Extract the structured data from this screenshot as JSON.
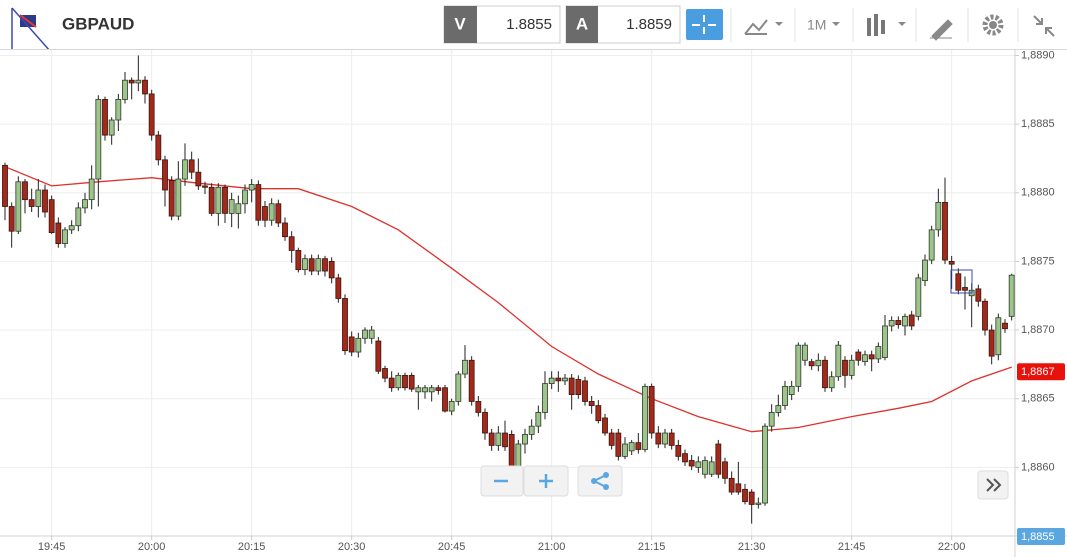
{
  "toolbar": {
    "symbol": "GBPAUD",
    "bid_label": "V",
    "bid": "1.8855",
    "ask_label": "A",
    "ask": "1.8859",
    "timeframe": "1M"
  },
  "chart_data": {
    "type": "candlestick",
    "title": "GBPAUD",
    "x": [
      1178,
      1179,
      1180,
      1181,
      1182,
      1183,
      1184,
      1185,
      1186,
      1187,
      1188,
      1189,
      1190,
      1191,
      1192,
      1193,
      1194,
      1195,
      1196,
      1197,
      1198,
      1199,
      1200,
      1201,
      1202,
      1203,
      1204,
      1205,
      1206,
      1207,
      1208,
      1209,
      1210,
      1211,
      1212,
      1213,
      1214,
      1215,
      1216,
      1217,
      1218,
      1219,
      1220,
      1221,
      1222,
      1223,
      1224,
      1225,
      1226,
      1227,
      1228,
      1229,
      1230,
      1231,
      1232,
      1233,
      1234,
      1235,
      1236,
      1237,
      1238,
      1239,
      1240,
      1241,
      1242,
      1243,
      1244,
      1245,
      1246,
      1247,
      1248,
      1249,
      1250,
      1251,
      1252,
      1253,
      1254,
      1255,
      1256,
      1257,
      1258,
      1259,
      1260,
      1261,
      1262,
      1263,
      1264,
      1265,
      1266,
      1267,
      1268,
      1269,
      1270,
      1271,
      1272,
      1273,
      1274,
      1275,
      1276,
      1277,
      1278,
      1279,
      1280,
      1281,
      1282,
      1283,
      1284,
      1285,
      1286,
      1287,
      1288,
      1289,
      1290,
      1291,
      1292,
      1293,
      1294,
      1295,
      1296,
      1297,
      1298,
      1299,
      1300,
      1301,
      1302,
      1303,
      1304,
      1305,
      1306,
      1307,
      1308,
      1309,
      1310,
      1311,
      1312,
      1313,
      1314,
      1315,
      1316,
      1317,
      1318,
      1319,
      1320,
      1321,
      1322,
      1323,
      1324,
      1325,
      1326,
      1327,
      1328,
      1329
    ],
    "ohlc": [
      [
        1.8882,
        1.88822,
        1.8878,
        1.8879
      ],
      [
        1.8879,
        1.88793,
        1.8876,
        1.88772
      ],
      [
        1.88772,
        1.88812,
        1.8877,
        1.88808
      ],
      [
        1.88808,
        1.8881,
        1.88785,
        1.88795
      ],
      [
        1.88795,
        1.88803,
        1.88786,
        1.8879
      ],
      [
        1.8879,
        1.8881,
        1.88782,
        1.88802
      ],
      [
        1.88802,
        1.88806,
        1.88782,
        1.88786
      ],
      [
        1.88795,
        1.88798,
        1.8877,
        1.88771
      ],
      [
        1.88778,
        1.88782,
        1.8876,
        1.88763
      ],
      [
        1.88763,
        1.88775,
        1.8876,
        1.88773
      ],
      [
        1.88773,
        1.8878,
        1.8877,
        1.88776
      ],
      [
        1.88776,
        1.88793,
        1.88772,
        1.88789
      ],
      [
        1.88789,
        1.888,
        1.88785,
        1.88795
      ],
      [
        1.88795,
        1.8882,
        1.88788,
        1.8881
      ],
      [
        1.8881,
        1.88871,
        1.8879,
        1.88868
      ],
      [
        1.88868,
        1.8887,
        1.88838,
        1.88842
      ],
      [
        1.88842,
        1.88855,
        1.88835,
        1.88853
      ],
      [
        1.88853,
        1.88872,
        1.88845,
        1.88868
      ],
      [
        1.88868,
        1.88888,
        1.88865,
        1.88882
      ],
      [
        1.88882,
        1.88884,
        1.88868,
        1.8888
      ],
      [
        1.8888,
        1.889,
        1.88874,
        1.88882
      ],
      [
        1.88882,
        1.88885,
        1.88865,
        1.88872
      ],
      [
        1.88872,
        1.88875,
        1.88838,
        1.88842
      ],
      [
        1.88842,
        1.88845,
        1.8882,
        1.88824
      ],
      [
        1.88824,
        1.88827,
        1.8879,
        1.88802
      ],
      [
        1.88809,
        1.88812,
        1.8878,
        1.88783
      ],
      [
        1.88783,
        1.88823,
        1.8878,
        1.8881
      ],
      [
        1.8881,
        1.88836,
        1.88805,
        1.88824
      ],
      [
        1.88824,
        1.8883,
        1.8881,
        1.88815
      ],
      [
        1.88815,
        1.88825,
        1.88802,
        1.88805
      ],
      [
        1.88805,
        1.88808,
        1.88799,
        1.88804
      ],
      [
        1.88804,
        1.88807,
        1.88783,
        1.88785
      ],
      [
        1.88785,
        1.88807,
        1.88776,
        1.88804
      ],
      [
        1.88804,
        1.88806,
        1.88778,
        1.88785
      ],
      [
        1.88785,
        1.888,
        1.88775,
        1.88795
      ],
      [
        1.88785,
        1.88798,
        1.88774,
        1.88792
      ],
      [
        1.88792,
        1.88806,
        1.88785,
        1.88802
      ],
      [
        1.88802,
        1.8881,
        1.88793,
        1.88806
      ],
      [
        1.88806,
        1.88809,
        1.88776,
        1.8878
      ],
      [
        1.8879,
        1.88794,
        1.88775,
        1.8878
      ],
      [
        1.8878,
        1.88796,
        1.88776,
        1.88792
      ],
      [
        1.88792,
        1.88795,
        1.88775,
        1.88778
      ],
      [
        1.88778,
        1.88782,
        1.88765,
        1.88768
      ],
      [
        1.88768,
        1.88772,
        1.88749,
        1.88758
      ],
      [
        1.88758,
        1.8876,
        1.88742,
        1.88744
      ],
      [
        1.88744,
        1.88755,
        1.8874,
        1.88752
      ],
      [
        1.88752,
        1.88755,
        1.8874,
        1.88743
      ],
      [
        1.88743,
        1.88755,
        1.8874,
        1.88752
      ],
      [
        1.88752,
        1.88754,
        1.88739,
        1.88743
      ],
      [
        1.8875,
        1.88753,
        1.88734,
        1.88738
      ],
      [
        1.88738,
        1.88741,
        1.8872,
        1.88723
      ],
      [
        1.88723,
        1.88726,
        1.88682,
        1.88685
      ],
      [
        1.88695,
        1.88699,
        1.88681,
        1.88684
      ],
      [
        1.88684,
        1.88698,
        1.8868,
        1.88694
      ],
      [
        1.88694,
        1.88702,
        1.8869,
        1.887
      ],
      [
        1.88694,
        1.88703,
        1.8869,
        1.887
      ],
      [
        1.88692,
        1.88695,
        1.88668,
        1.8867
      ],
      [
        1.88672,
        1.88674,
        1.88662,
        1.88665
      ],
      [
        1.88665,
        1.8867,
        1.88655,
        1.88658
      ],
      [
        1.88658,
        1.88669,
        1.88656,
        1.88667
      ],
      [
        1.88667,
        1.88669,
        1.88656,
        1.88658
      ],
      [
        1.88667,
        1.88669,
        1.88655,
        1.88657
      ],
      [
        1.88655,
        1.8866,
        1.88642,
        1.88658
      ],
      [
        1.88655,
        1.8866,
        1.8865,
        1.88658
      ],
      [
        1.88655,
        1.8866,
        1.88648,
        1.88658
      ],
      [
        1.88658,
        1.8866,
        1.88653,
        1.88656
      ],
      [
        1.88658,
        1.8866,
        1.8864,
        1.88641
      ],
      [
        1.88641,
        1.8865,
        1.88638,
        1.88648
      ],
      [
        1.88648,
        1.8867,
        1.88645,
        1.88668
      ],
      [
        1.88668,
        1.88689,
        1.88665,
        1.88678
      ],
      [
        1.88678,
        1.88681,
        1.88645,
        1.88648
      ],
      [
        1.88648,
        1.88652,
        1.88637,
        1.8864
      ],
      [
        1.8864,
        1.88643,
        1.8862,
        1.88625
      ],
      [
        1.88625,
        1.88628,
        1.88612,
        1.88616
      ],
      [
        1.88616,
        1.8863,
        1.88612,
        1.88625
      ],
      [
        1.88625,
        1.88634,
        1.88612,
        1.88615
      ],
      [
        1.88624,
        1.88627,
        1.88585,
        1.88593
      ],
      [
        1.88593,
        1.8862,
        1.8859,
        1.88617
      ],
      [
        1.88617,
        1.88628,
        1.8861,
        1.88624
      ],
      [
        1.88624,
        1.88635,
        1.8862,
        1.8863
      ],
      [
        1.8863,
        1.88645,
        1.88625,
        1.8864
      ],
      [
        1.8864,
        1.8867,
        1.88635,
        1.88661
      ],
      [
        1.88661,
        1.8867,
        1.88657,
        1.88665
      ],
      [
        1.88665,
        1.8867,
        1.88655,
        1.88663
      ],
      [
        1.88663,
        1.88668,
        1.8866,
        1.88665
      ],
      [
        1.88665,
        1.88668,
        1.88642,
        1.88653
      ],
      [
        1.88664,
        1.88667,
        1.8865,
        1.88653
      ],
      [
        1.88663,
        1.88666,
        1.88645,
        1.88648
      ],
      [
        1.88648,
        1.88652,
        1.88639,
        1.88645
      ],
      [
        1.88645,
        1.88649,
        1.88632,
        1.88634
      ],
      [
        1.88636,
        1.88639,
        1.88623,
        1.88625
      ],
      [
        1.88625,
        1.88628,
        1.88613,
        1.88616
      ],
      [
        1.88625,
        1.88628,
        1.88605,
        1.88608
      ],
      [
        1.88608,
        1.88622,
        1.88606,
        1.88617
      ],
      [
        1.88612,
        1.8862,
        1.88609,
        1.88618
      ],
      [
        1.88618,
        1.88625,
        1.8861,
        1.88613
      ],
      [
        1.88613,
        1.88661,
        1.88611,
        1.88659
      ],
      [
        1.88659,
        1.88661,
        1.88621,
        1.88625
      ],
      [
        1.88625,
        1.8863,
        1.88614,
        1.88617
      ],
      [
        1.88617,
        1.88628,
        1.88614,
        1.88625
      ],
      [
        1.88625,
        1.88628,
        1.88613,
        1.88616
      ],
      [
        1.88616,
        1.8862,
        1.88605,
        1.88608
      ],
      [
        1.8861,
        1.88613,
        1.88601,
        1.88604
      ],
      [
        1.88605,
        1.88609,
        1.88598,
        1.88601
      ],
      [
        1.886,
        1.88608,
        1.88596,
        1.88604
      ],
      [
        1.88595,
        1.88608,
        1.88592,
        1.88605
      ],
      [
        1.88595,
        1.88608,
        1.88593,
        1.88604
      ],
      [
        1.88617,
        1.8862,
        1.88592,
        1.88595
      ],
      [
        1.88604,
        1.88607,
        1.88588,
        1.88592
      ],
      [
        1.88592,
        1.88597,
        1.8858,
        1.88582
      ],
      [
        1.88588,
        1.88604,
        1.8858,
        1.88582
      ],
      [
        1.88584,
        1.88588,
        1.88573,
        1.88575
      ],
      [
        1.88582,
        1.88584,
        1.88559,
        1.88573
      ],
      [
        1.88573,
        1.88578,
        1.8857,
        1.88574
      ],
      [
        1.88574,
        1.88632,
        1.88572,
        1.8863
      ],
      [
        1.8863,
        1.88646,
        1.88626,
        1.8864
      ],
      [
        1.8864,
        1.88653,
        1.88637,
        1.88645
      ],
      [
        1.88645,
        1.88663,
        1.88642,
        1.88659
      ],
      [
        1.88653,
        1.88663,
        1.88649,
        1.88659
      ],
      [
        1.88659,
        1.88691,
        1.88655,
        1.88689
      ],
      [
        1.88678,
        1.88691,
        1.88674,
        1.88689
      ],
      [
        1.88677,
        1.88679,
        1.88671,
        1.88674
      ],
      [
        1.88674,
        1.88683,
        1.8867,
        1.88678
      ],
      [
        1.88678,
        1.88681,
        1.88655,
        1.88658
      ],
      [
        1.88658,
        1.8867,
        1.88655,
        1.88666
      ],
      [
        1.88666,
        1.88692,
        1.88663,
        1.88689
      ],
      [
        1.88678,
        1.88681,
        1.88658,
        1.88667
      ],
      [
        1.88667,
        1.88682,
        1.88664,
        1.88678
      ],
      [
        1.88684,
        1.88686,
        1.88674,
        1.88678
      ],
      [
        1.88677,
        1.88685,
        1.88674,
        1.88682
      ],
      [
        1.88682,
        1.88685,
        1.8867,
        1.88679
      ],
      [
        1.88679,
        1.88691,
        1.88676,
        1.88688
      ],
      [
        1.8868,
        1.88711,
        1.88678,
        1.88703
      ],
      [
        1.88703,
        1.8871,
        1.88699,
        1.88707
      ],
      [
        1.88707,
        1.8871,
        1.88701,
        1.88704
      ],
      [
        1.88703,
        1.88712,
        1.88696,
        1.8871
      ],
      [
        1.88711,
        1.88714,
        1.887,
        1.88703
      ],
      [
        1.8871,
        1.88741,
        1.88707,
        1.88738
      ],
      [
        1.88736,
        1.88755,
        1.88732,
        1.88751
      ],
      [
        1.88751,
        1.88776,
        1.88748,
        1.88773
      ],
      [
        1.88773,
        1.88803,
        1.88768,
        1.88793
      ],
      [
        1.88793,
        1.88811,
        1.88748,
        1.88751
      ],
      [
        1.8875,
        1.88754,
        1.8873,
        1.88748
      ],
      [
        1.88741,
        1.88745,
        1.88726,
        1.88729
      ],
      [
        1.88731,
        1.88739,
        1.88715,
        1.88729
      ],
      [
        1.88725,
        1.88734,
        1.88702,
        1.88729
      ],
      [
        1.8873,
        1.88733,
        1.88717,
        1.88721
      ],
      [
        1.88721,
        1.88723,
        1.88696,
        1.887
      ],
      [
        1.887,
        1.88704,
        1.88675,
        1.88681
      ],
      [
        1.88682,
        1.88712,
        1.88678,
        1.88709
      ],
      [
        1.88705,
        1.88708,
        1.88698,
        1.88701
      ],
      [
        1.8871,
        1.88741,
        1.88707,
        1.8874
      ]
    ],
    "up_color": "#9dc48a",
    "down_color": "#a3291b",
    "moving_average": {
      "color": "#e0302a",
      "x": [
        1178,
        1185,
        1192,
        1200,
        1207,
        1215,
        1222,
        1230,
        1237,
        1245,
        1252,
        1260,
        1267,
        1275,
        1282,
        1290,
        1297,
        1305,
        1312,
        1317,
        1323,
        1329
      ],
      "values": [
        1.88819,
        1.88805,
        1.88808,
        1.88811,
        1.88807,
        1.88803,
        1.88803,
        1.8879,
        1.88773,
        1.88745,
        1.8872,
        1.88688,
        1.88668,
        1.8865,
        1.88637,
        1.88626,
        1.88629,
        1.88637,
        1.88643,
        1.88648,
        1.88663,
        1.88673
      ]
    },
    "price_markers": [
      {
        "value": 1.8867,
        "label": "1,8867",
        "color": "#e8120c"
      },
      {
        "value": 1.8855,
        "label": "1,8855",
        "color": "#5aa6e0"
      }
    ],
    "xlim": [
      1177.25,
      1329.5
    ],
    "ylim": [
      1.8855,
      1.88904
    ],
    "xticks": [
      {
        "value": 1185,
        "label": "19:45"
      },
      {
        "value": 1200,
        "label": "20:00"
      },
      {
        "value": 1215,
        "label": "20:15"
      },
      {
        "value": 1230,
        "label": "20:30"
      },
      {
        "value": 1245,
        "label": "20:45"
      },
      {
        "value": 1260,
        "label": "21:00"
      },
      {
        "value": 1275,
        "label": "21:15"
      },
      {
        "value": 1290,
        "label": "21:30"
      },
      {
        "value": 1305,
        "label": "21:45"
      },
      {
        "value": 1320,
        "label": "22:00"
      }
    ],
    "yticks": [
      {
        "value": 1.886,
        "label": "1,8860"
      },
      {
        "value": 1.8865,
        "label": "1,8865"
      },
      {
        "value": 1.887,
        "label": "1,8870"
      },
      {
        "value": 1.8875,
        "label": "1,8875"
      },
      {
        "value": 1.888,
        "label": "1,8880"
      },
      {
        "value": 1.8885,
        "label": "1,8885"
      },
      {
        "value": 1.889,
        "label": "1,8890"
      }
    ],
    "grid": true
  }
}
